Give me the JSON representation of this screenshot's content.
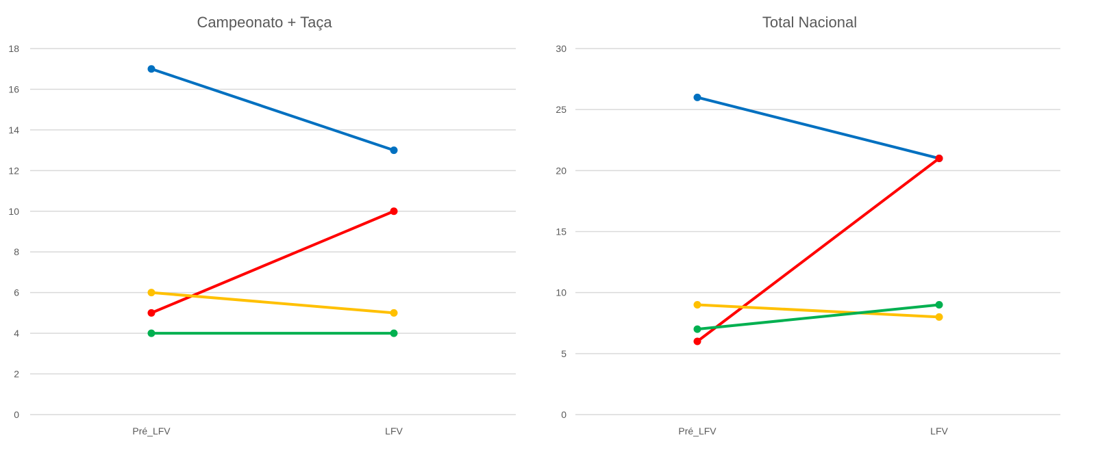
{
  "chart_data": [
    {
      "type": "line",
      "title": "Campeonato + Taça",
      "xlabel": "",
      "ylabel": "",
      "categories": [
        "Pré_LFV",
        "LFV"
      ],
      "ylim": [
        0,
        18
      ],
      "yticks": [
        0,
        2,
        4,
        6,
        8,
        10,
        12,
        14,
        16,
        18
      ],
      "grid": true,
      "legend": "none",
      "series": [
        {
          "color": "#0070c0",
          "values": [
            17,
            13
          ]
        },
        {
          "color": "#ff0000",
          "values": [
            5,
            10
          ]
        },
        {
          "color": "#ffc000",
          "values": [
            6,
            5
          ]
        },
        {
          "color": "#00b050",
          "values": [
            4,
            4
          ]
        }
      ]
    },
    {
      "type": "line",
      "title": "Total Nacional",
      "xlabel": "",
      "ylabel": "",
      "categories": [
        "Pré_LFV",
        "LFV"
      ],
      "ylim": [
        0,
        30
      ],
      "yticks": [
        0,
        5,
        10,
        15,
        20,
        25,
        30
      ],
      "grid": true,
      "legend": "none",
      "series": [
        {
          "color": "#0070c0",
          "values": [
            26,
            21
          ]
        },
        {
          "color": "#ff0000",
          "values": [
            6,
            21
          ]
        },
        {
          "color": "#ffc000",
          "values": [
            9,
            8
          ]
        },
        {
          "color": "#00b050",
          "values": [
            7,
            9
          ]
        }
      ]
    }
  ]
}
